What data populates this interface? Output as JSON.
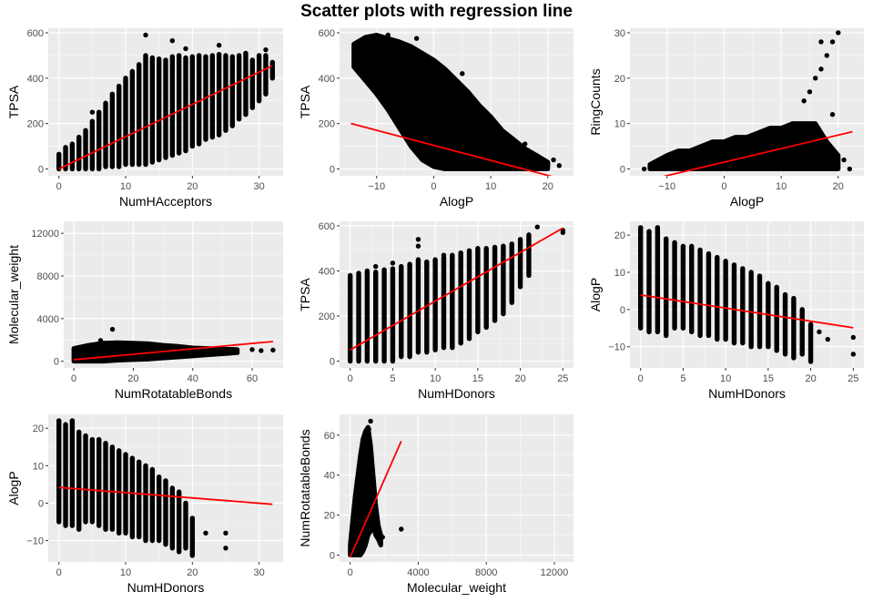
{
  "figure": {
    "title": "Scatter plots with regression line"
  },
  "colors": {
    "panel_bg": "#EBEBEB",
    "grid_major": "#FFFFFF",
    "point": "#000000",
    "regression_line": "#FF0000",
    "tick_text": "#4D4D4D",
    "axis_title": "#000000"
  },
  "chart_data": [
    {
      "type": "scatter",
      "xlabel": "NumHAcceptors",
      "ylabel": "TPSA",
      "xlim": [
        -1.6,
        33.6
      ],
      "ylim": [
        -30,
        620
      ],
      "xticks": [
        0,
        10,
        20,
        30
      ],
      "yticks": [
        0,
        200,
        400,
        600
      ],
      "regression": {
        "x": [
          0,
          32
        ],
        "y": [
          0,
          455
        ]
      },
      "points": [
        [
          13,
          590
        ],
        [
          17,
          565
        ],
        [
          24,
          545
        ],
        [
          19,
          530
        ],
        [
          31,
          525
        ],
        [
          28,
          510
        ],
        [
          2,
          100
        ],
        [
          5,
          250
        ],
        [
          12,
          200
        ],
        [
          20,
          350
        ]
      ],
      "bands": [
        [
          0,
          0,
          65
        ],
        [
          1,
          0,
          95
        ],
        [
          2,
          0,
          110
        ],
        [
          3,
          0,
          140
        ],
        [
          4,
          0,
          170
        ],
        [
          5,
          0,
          210
        ],
        [
          6,
          0,
          250
        ],
        [
          7,
          10,
          290
        ],
        [
          8,
          10,
          330
        ],
        [
          9,
          10,
          365
        ],
        [
          10,
          20,
          400
        ],
        [
          11,
          20,
          430
        ],
        [
          12,
          20,
          460
        ],
        [
          13,
          20,
          500
        ],
        [
          14,
          30,
          490
        ],
        [
          15,
          40,
          485
        ],
        [
          16,
          50,
          480
        ],
        [
          17,
          60,
          495
        ],
        [
          18,
          70,
          500
        ],
        [
          19,
          80,
          490
        ],
        [
          20,
          100,
          495
        ],
        [
          21,
          110,
          500
        ],
        [
          22,
          130,
          495
        ],
        [
          23,
          140,
          500
        ],
        [
          24,
          150,
          505
        ],
        [
          25,
          170,
          500
        ],
        [
          26,
          190,
          495
        ],
        [
          27,
          220,
          500
        ],
        [
          28,
          240,
          505
        ],
        [
          29,
          270,
          480
        ],
        [
          30,
          300,
          500
        ],
        [
          31,
          330,
          500
        ],
        [
          32,
          400,
          470
        ]
      ]
    },
    {
      "type": "scatter",
      "xlabel": "AlogP",
      "ylabel": "TPSA",
      "xlim": [
        -16.5,
        24.5
      ],
      "ylim": [
        -30,
        620
      ],
      "xticks": [
        -10,
        0,
        10,
        20
      ],
      "yticks": [
        0,
        200,
        400,
        600
      ],
      "regression": {
        "x": [
          -14.5,
          22.5
        ],
        "y": [
          200,
          -45
        ]
      },
      "points": [
        [
          -8,
          590
        ],
        [
          -3,
          575
        ],
        [
          -12,
          480
        ],
        [
          18,
          60
        ],
        [
          20,
          20
        ],
        [
          22,
          15
        ],
        [
          21,
          40
        ],
        [
          16,
          110
        ],
        [
          -10,
          350
        ],
        [
          5,
          420
        ]
      ],
      "cloud": [
        [
          -14,
          450,
          550
        ],
        [
          -12,
          390,
          580
        ],
        [
          -10,
          330,
          590
        ],
        [
          -8,
          260,
          575
        ],
        [
          -6,
          180,
          560
        ],
        [
          -4,
          100,
          540
        ],
        [
          -2,
          40,
          510
        ],
        [
          0,
          10,
          480
        ],
        [
          2,
          0,
          440
        ],
        [
          4,
          0,
          390
        ],
        [
          6,
          0,
          340
        ],
        [
          8,
          0,
          280
        ],
        [
          10,
          0,
          230
        ],
        [
          12,
          0,
          170
        ],
        [
          14,
          0,
          130
        ],
        [
          16,
          0,
          90
        ],
        [
          18,
          0,
          60
        ],
        [
          20,
          0,
          30
        ]
      ]
    },
    {
      "type": "scatter",
      "xlabel": "AlogP",
      "ylabel": "RingCounts",
      "xlim": [
        -16.5,
        24.5
      ],
      "ylim": [
        -1.5,
        31
      ],
      "xticks": [
        -10,
        0,
        10,
        20
      ],
      "yticks": [
        0,
        10,
        20,
        30
      ],
      "regression": {
        "x": [
          -14.5,
          22.5
        ],
        "y": [
          -2.8,
          8.2
        ]
      },
      "points": [
        [
          20,
          30
        ],
        [
          19,
          28
        ],
        [
          17,
          28
        ],
        [
          18,
          25
        ],
        [
          16,
          20
        ],
        [
          15,
          17
        ],
        [
          14,
          15
        ],
        [
          17,
          22
        ],
        [
          19,
          12
        ],
        [
          22,
          0
        ],
        [
          -14,
          0
        ],
        [
          21,
          2
        ],
        [
          12,
          10
        ],
        [
          15,
          9
        ]
      ],
      "cloud": [
        [
          -13,
          0,
          1
        ],
        [
          -10,
          0,
          3
        ],
        [
          -8,
          0,
          4
        ],
        [
          -6,
          0,
          4
        ],
        [
          -4,
          0,
          5
        ],
        [
          -2,
          0,
          6
        ],
        [
          0,
          0,
          6
        ],
        [
          2,
          0,
          7
        ],
        [
          4,
          0,
          7
        ],
        [
          6,
          0,
          8
        ],
        [
          8,
          0,
          9
        ],
        [
          10,
          0,
          9
        ],
        [
          12,
          0,
          10
        ],
        [
          14,
          0,
          10
        ],
        [
          16,
          0,
          10
        ],
        [
          18,
          0,
          6
        ],
        [
          20,
          0,
          3
        ]
      ]
    },
    {
      "type": "scatter",
      "xlabel": "NumRotatableBonds",
      "ylabel": "Molecular_weight",
      "xlim": [
        -3.4,
        70.4
      ],
      "ylim": [
        -625,
        13125
      ],
      "xticks": [
        0,
        20,
        40,
        60
      ],
      "yticks": [
        0,
        4000,
        8000,
        12000
      ],
      "regression": {
        "x": [
          0,
          67
        ],
        "y": [
          150,
          1850
        ]
      },
      "points": [
        [
          13,
          3000
        ],
        [
          9,
          1950
        ],
        [
          60,
          1100
        ],
        [
          63,
          1000
        ],
        [
          67,
          1050
        ]
      ],
      "cloud": [
        [
          0,
          0,
          1200
        ],
        [
          5,
          0,
          1500
        ],
        [
          10,
          0,
          1700
        ],
        [
          15,
          100,
          1750
        ],
        [
          20,
          150,
          1700
        ],
        [
          25,
          200,
          1650
        ],
        [
          30,
          300,
          1500
        ],
        [
          35,
          400,
          1400
        ],
        [
          40,
          500,
          1250
        ],
        [
          45,
          600,
          1200
        ],
        [
          50,
          700,
          1150
        ],
        [
          55,
          800,
          1100
        ]
      ]
    },
    {
      "type": "scatter",
      "xlabel": "NumHDonors",
      "ylabel": "TPSA",
      "xlim": [
        -1.25,
        26.25
      ],
      "ylim": [
        -30,
        620
      ],
      "xticks": [
        0,
        5,
        10,
        15,
        20,
        25
      ],
      "yticks": [
        0,
        200,
        400,
        600
      ],
      "regression": {
        "x": [
          0,
          25
        ],
        "y": [
          50,
          590
        ]
      },
      "points": [
        [
          25,
          580
        ],
        [
          25,
          570
        ],
        [
          22,
          595
        ],
        [
          8,
          540
        ],
        [
          8,
          510
        ],
        [
          3,
          420
        ],
        [
          5,
          435
        ],
        [
          11,
          470
        ]
      ],
      "bands": [
        [
          0,
          0,
          380
        ],
        [
          1,
          0,
          390
        ],
        [
          2,
          0,
          400
        ],
        [
          3,
          0,
          395
        ],
        [
          4,
          0,
          405
        ],
        [
          5,
          0,
          410
        ],
        [
          6,
          20,
          420
        ],
        [
          7,
          20,
          430
        ],
        [
          8,
          40,
          450
        ],
        [
          9,
          40,
          440
        ],
        [
          10,
          50,
          450
        ],
        [
          11,
          60,
          460
        ],
        [
          12,
          60,
          470
        ],
        [
          13,
          80,
          480
        ],
        [
          14,
          100,
          490
        ],
        [
          15,
          130,
          500
        ],
        [
          16,
          150,
          500
        ],
        [
          17,
          180,
          505
        ],
        [
          18,
          210,
          510
        ],
        [
          19,
          260,
          520
        ],
        [
          20,
          330,
          540
        ],
        [
          21,
          380,
          560
        ]
      ]
    },
    {
      "type": "scatter",
      "xlabel": "NumHDonors",
      "ylabel": "AlogP",
      "xlim": [
        -1.25,
        26.25
      ],
      "ylim": [
        -15.7,
        23.7
      ],
      "xticks": [
        0,
        5,
        10,
        15,
        20,
        25
      ],
      "yticks": [
        -10,
        0,
        10,
        20
      ],
      "regression": {
        "x": [
          0,
          25
        ],
        "y": [
          3.9,
          -4.9
        ]
      },
      "points": [
        [
          25,
          -7.5
        ],
        [
          25,
          -12
        ],
        [
          22,
          -8
        ],
        [
          21,
          -6
        ],
        [
          2,
          22
        ],
        [
          0,
          22
        ]
      ],
      "bands": [
        [
          0,
          -5,
          22
        ],
        [
          1,
          -6,
          21
        ],
        [
          2,
          -6,
          22
        ],
        [
          3,
          -7,
          19
        ],
        [
          4,
          -5,
          18
        ],
        [
          5,
          -5,
          17
        ],
        [
          6,
          -6,
          17
        ],
        [
          7,
          -7,
          16
        ],
        [
          8,
          -7,
          15
        ],
        [
          9,
          -8,
          14
        ],
        [
          10,
          -8,
          13
        ],
        [
          11,
          -9,
          12
        ],
        [
          12,
          -9,
          11
        ],
        [
          13,
          -10,
          10
        ],
        [
          14,
          -10,
          9
        ],
        [
          15,
          -10,
          7
        ],
        [
          16,
          -11,
          6
        ],
        [
          17,
          -12,
          4
        ],
        [
          18,
          -13,
          3
        ],
        [
          19,
          -12,
          0
        ],
        [
          20,
          -14,
          -4
        ]
      ]
    },
    {
      "type": "scatter",
      "xlabel": "NumHDonors",
      "ylabel": "AlogP",
      "xlim": [
        -1.6,
        33.6
      ],
      "ylim": [
        -15.7,
        23.7
      ],
      "xticks": [
        0,
        10,
        20,
        30
      ],
      "yticks": [
        -10,
        0,
        10,
        20
      ],
      "regression": {
        "x": [
          0,
          32
        ],
        "y": [
          4.2,
          -0.3
        ]
      },
      "points": [
        [
          25,
          -8
        ],
        [
          25,
          -12
        ],
        [
          22,
          -8
        ],
        [
          2,
          22
        ],
        [
          0,
          22
        ]
      ],
      "bands": [
        [
          0,
          -5,
          22
        ],
        [
          1,
          -6,
          21
        ],
        [
          2,
          -6,
          22
        ],
        [
          3,
          -7,
          19
        ],
        [
          4,
          -5,
          18
        ],
        [
          5,
          -5,
          17
        ],
        [
          6,
          -6,
          17
        ],
        [
          7,
          -7,
          16
        ],
        [
          8,
          -7,
          15
        ],
        [
          9,
          -8,
          14
        ],
        [
          10,
          -8,
          13
        ],
        [
          11,
          -9,
          12
        ],
        [
          12,
          -9,
          11
        ],
        [
          13,
          -10,
          10
        ],
        [
          14,
          -10,
          9
        ],
        [
          15,
          -10,
          7
        ],
        [
          16,
          -11,
          6
        ],
        [
          17,
          -12,
          4
        ],
        [
          18,
          -13,
          3
        ],
        [
          19,
          -12,
          0
        ],
        [
          20,
          -14,
          -4
        ]
      ]
    },
    {
      "type": "scatter",
      "xlabel": "Molecular_weight",
      "ylabel": "NumRotatableBonds",
      "xlim": [
        -625,
        13125
      ],
      "ylim": [
        -3.4,
        70.4
      ],
      "xticks": [
        0,
        4000,
        8000,
        12000
      ],
      "yticks": [
        0,
        20,
        40,
        60
      ],
      "regression": {
        "x": [
          0,
          3000
        ],
        "y": [
          -1,
          57
        ]
      },
      "points": [
        [
          3000,
          13
        ],
        [
          1900,
          9
        ],
        [
          1200,
          67
        ],
        [
          1100,
          63
        ],
        [
          1050,
          60
        ]
      ],
      "cloud": [
        [
          0,
          0,
          5
        ],
        [
          150,
          0,
          18
        ],
        [
          300,
          0,
          30
        ],
        [
          450,
          0,
          40
        ],
        [
          600,
          0,
          50
        ],
        [
          750,
          2,
          58
        ],
        [
          900,
          5,
          62
        ],
        [
          1050,
          10,
          64
        ],
        [
          1200,
          12,
          55
        ],
        [
          1350,
          15,
          40
        ],
        [
          1500,
          10,
          25
        ],
        [
          1650,
          8,
          15
        ],
        [
          1800,
          5,
          10
        ]
      ]
    }
  ]
}
